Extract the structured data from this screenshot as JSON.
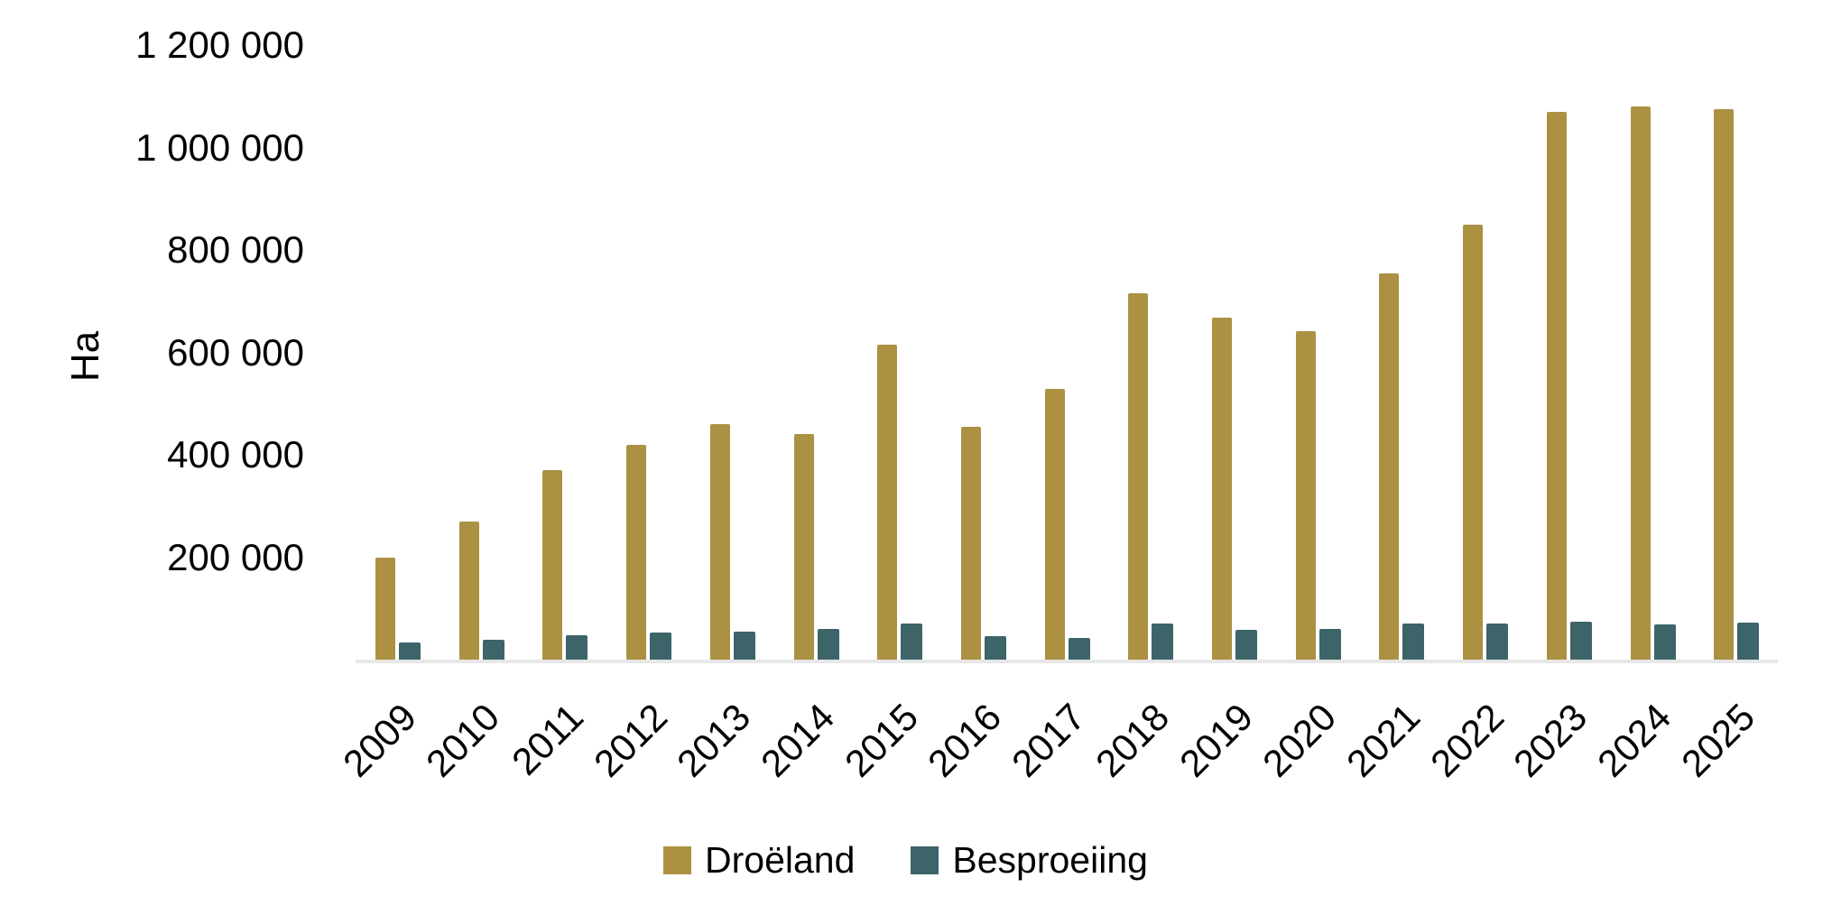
{
  "figure": {
    "background_color": "#FFFFFF",
    "text_color": "#000000",
    "axis_line_color": "#E7E7E7"
  },
  "chart_data": {
    "type": "bar",
    "title": "",
    "xlabel": "",
    "ylabel": "Ha",
    "categories": [
      "2009",
      "2010",
      "2011",
      "2012",
      "2013",
      "2014",
      "2015",
      "2016",
      "2017",
      "2018",
      "2019",
      "2020",
      "2021",
      "2022",
      "2023",
      "2024",
      "2025"
    ],
    "series": [
      {
        "name": "Droëland",
        "color": "#AC9143",
        "values": [
          200000,
          270000,
          370000,
          420000,
          460000,
          440000,
          615000,
          455000,
          528000,
          715000,
          667000,
          642000,
          755000,
          850000,
          1070000,
          1080000,
          1075000
        ]
      },
      {
        "name": "Besproeiing",
        "color": "#3D6468",
        "values": [
          34000,
          38000,
          48000,
          52000,
          55000,
          60000,
          70000,
          46000,
          43000,
          70000,
          59000,
          60000,
          70000,
          70000,
          74000,
          68000,
          72000
        ]
      }
    ],
    "y_axis": {
      "min": 0,
      "max": 1200000,
      "tick_interval": 200000,
      "tick_labels": [
        "200 000",
        "400 000",
        "600 000",
        "800 000",
        "1 000 000",
        "1 200 000"
      ]
    },
    "x_axis": {
      "label_rotation_deg": -45
    },
    "grid": false,
    "legend": {
      "position": "bottom",
      "entries": [
        "Droëland",
        "Besproeiing"
      ]
    }
  }
}
